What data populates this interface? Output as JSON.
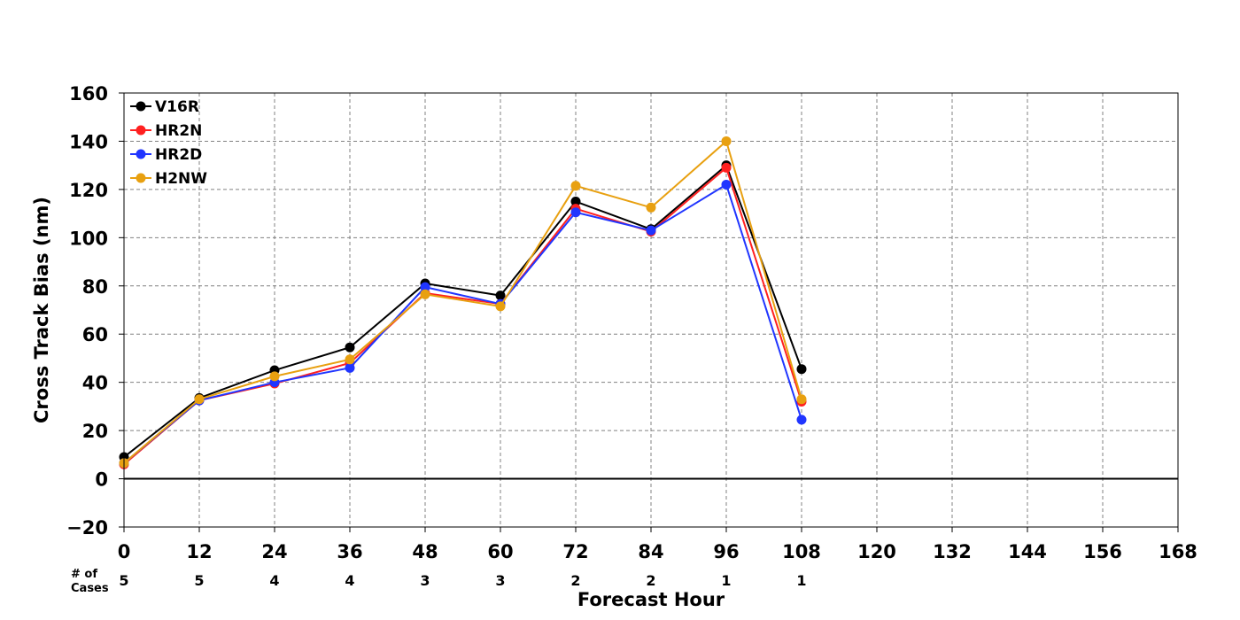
{
  "chart_data": {
    "type": "line",
    "xlabel": "Forecast Hour",
    "ylabel": "Cross Track Bias (nm)",
    "xlim": [
      0,
      168
    ],
    "ylim": [
      -20,
      160
    ],
    "x_ticks": [
      "0",
      "12",
      "24",
      "36",
      "48",
      "60",
      "72",
      "84",
      "96",
      "108",
      "120",
      "132",
      "144",
      "156",
      "168"
    ],
    "y_ticks": [
      "160",
      "140",
      "120",
      "100",
      "80",
      "60",
      "40",
      "20",
      "0",
      "−20"
    ],
    "grid": true,
    "legend_position": "top-left",
    "series": [
      {
        "name": "V16R",
        "color": "#000000",
        "x": [
          0,
          12,
          24,
          36,
          48,
          60,
          72,
          84,
          96,
          108
        ],
        "y": [
          9,
          33.5,
          45,
          54.5,
          81,
          76,
          115,
          103.5,
          130,
          45.5
        ]
      },
      {
        "name": "HR2N",
        "color": "#ff2020",
        "x": [
          0,
          12,
          24,
          36,
          48,
          60,
          72,
          84,
          96,
          108
        ],
        "y": [
          6,
          32.5,
          39.5,
          48,
          77,
          72.5,
          112,
          102.5,
          129,
          32
        ]
      },
      {
        "name": "HR2D",
        "color": "#2035ff",
        "x": [
          0,
          12,
          24,
          36,
          48,
          60,
          72,
          84,
          96,
          108
        ],
        "y": [
          6.5,
          32.5,
          40,
          46,
          79.5,
          72.5,
          110.5,
          103,
          122,
          24.5
        ]
      },
      {
        "name": "H2NW",
        "color": "#e8a010",
        "x": [
          0,
          12,
          24,
          36,
          48,
          60,
          72,
          84,
          96,
          108
        ],
        "y": [
          6.5,
          33,
          42.5,
          49.5,
          76.5,
          71.5,
          121.5,
          112.5,
          140,
          33
        ]
      }
    ],
    "cases": {
      "label_line1": "# of",
      "label_line2": "Cases",
      "x": [
        0,
        12,
        24,
        36,
        48,
        60,
        72,
        84,
        96,
        108
      ],
      "values": [
        "5",
        "5",
        "4",
        "4",
        "3",
        "3",
        "2",
        "2",
        "1",
        "1"
      ]
    }
  }
}
